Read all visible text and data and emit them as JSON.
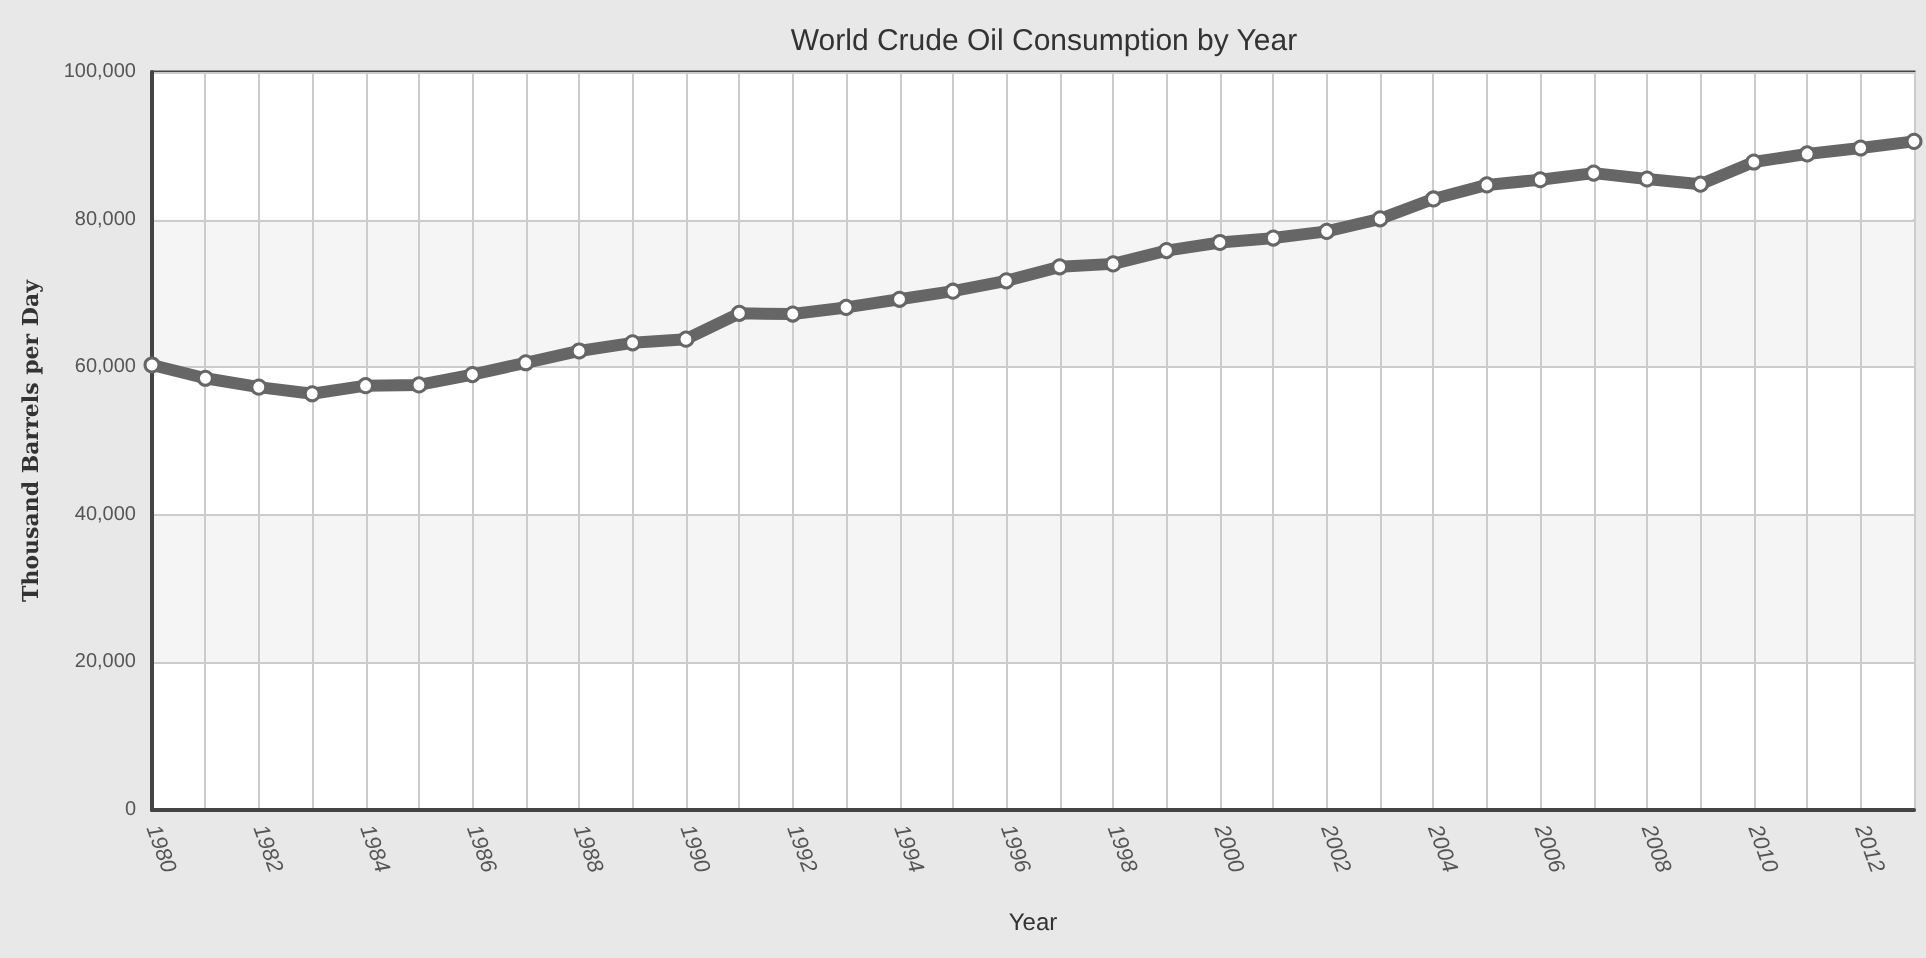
{
  "chart_data": {
    "type": "line",
    "title": "World Crude Oil Consumption by Year",
    "xlabel": "Year",
    "ylabel": "Thousand Barrels per Day",
    "categories": [
      "1980",
      null,
      "1982",
      null,
      "1984",
      null,
      "1986",
      null,
      "1988",
      null,
      "1990",
      null,
      "1992",
      null,
      "1994",
      null,
      "1996",
      null,
      "1998",
      null,
      "2000",
      null,
      "2002",
      null,
      "2004",
      null,
      "2006",
      null,
      "2008",
      null,
      "2010",
      null,
      "2012",
      null
    ],
    "series": [
      {
        "color": "#666666",
        "values": [
          60300,
          58500,
          57300,
          56400,
          57500,
          57600,
          59000,
          60600,
          62200,
          63300,
          63800,
          67300,
          67200,
          68100,
          69200,
          70300,
          71700,
          73600,
          74000,
          75800,
          76900,
          77500,
          78400,
          80100,
          82800,
          84700,
          85400,
          86300,
          85500,
          84800,
          87800,
          88900,
          89700,
          90600
        ]
      }
    ],
    "ylim": [
      0,
      100000
    ],
    "yticks": [
      0,
      {
        "value": 20000,
        "label": "20,000"
      },
      {
        "value": 40000,
        "label": "40,000"
      },
      {
        "value": 60000,
        "label": "60,000"
      },
      {
        "value": 80000,
        "label": "80,000"
      },
      {
        "value": 100000,
        "label": "100,000"
      }
    ],
    "grid": true,
    "marker": "circle",
    "line_style": "solid"
  }
}
